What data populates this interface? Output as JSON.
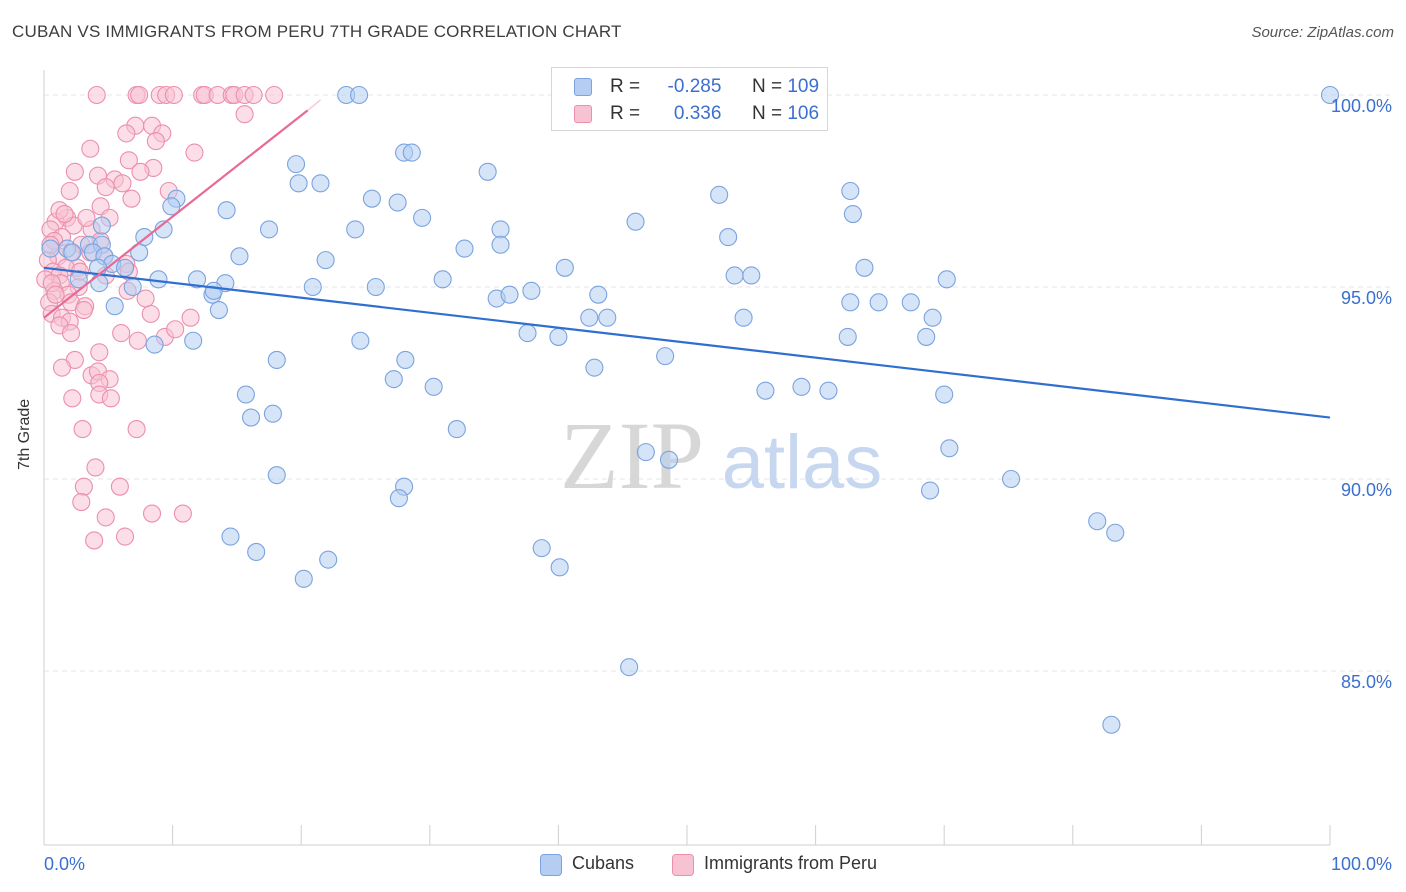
{
  "title": "CUBAN VS IMMIGRANTS FROM PERU 7TH GRADE CORRELATION CHART",
  "source": "Source: ZipAtlas.com",
  "watermark": {
    "zip": "ZIP",
    "atlas": "atlas"
  },
  "legend_top": {
    "rows": [
      {
        "r_label": "R =",
        "r_value": "-0.285",
        "n_label": "N =",
        "n_value": "109"
      },
      {
        "r_label": "R =",
        "r_value": "0.336",
        "n_label": "N =",
        "n_value": "106"
      }
    ]
  },
  "legend_bottom": [
    "Cubans",
    "Immigrants from Peru"
  ],
  "colors": {
    "blue_fill": "#b5cdf2",
    "blue_stroke": "#7aa3df",
    "blue_line": "#2f6fd0",
    "pink_fill": "#f7c3d3",
    "pink_stroke": "#ec8fad",
    "pink_line": "#e86a95",
    "tick_label": "#3b6fd0",
    "grid": "#e6e6e6"
  },
  "chart_data": {
    "type": "scatter",
    "title": "CUBAN VS IMMIGRANTS FROM PERU 7TH GRADE CORRELATION CHART",
    "xlabel": "",
    "ylabel": "7th Grade",
    "xlim": [
      0,
      100
    ],
    "ylim": [
      80.5,
      100.5
    ],
    "x_tick_labels": [
      "0.0%",
      "100.0%"
    ],
    "y_ticks": [
      85,
      90,
      95,
      100
    ],
    "y_tick_labels": [
      "85.0%",
      "90.0%",
      "95.0%",
      "100.0%"
    ],
    "grid": true,
    "series": [
      {
        "name": "Cubans",
        "r": -0.285,
        "n": 109,
        "trend": {
          "x": [
            0,
            100
          ],
          "y": [
            95.5,
            91.6
          ]
        },
        "points": [
          [
            23.5,
            100
          ],
          [
            24.5,
            100
          ],
          [
            100,
            100
          ],
          [
            28,
            98.5
          ],
          [
            28.6,
            98.5
          ],
          [
            19.6,
            98.2
          ],
          [
            34.5,
            98
          ],
          [
            19.8,
            97.7
          ],
          [
            21.5,
            97.7
          ],
          [
            10.3,
            97.3
          ],
          [
            25.5,
            97.3
          ],
          [
            27.5,
            97.2
          ],
          [
            52.5,
            97.4
          ],
          [
            62.7,
            97.5
          ],
          [
            9.9,
            97.1
          ],
          [
            14.2,
            97
          ],
          [
            29.4,
            96.8
          ],
          [
            46,
            96.7
          ],
          [
            62.9,
            96.9
          ],
          [
            17.5,
            96.5
          ],
          [
            24.2,
            96.5
          ],
          [
            35.5,
            96.5
          ],
          [
            53.2,
            96.3
          ],
          [
            9.3,
            96.5
          ],
          [
            7.8,
            96.3
          ],
          [
            4.5,
            96.6
          ],
          [
            1.8,
            96
          ],
          [
            2.2,
            95.9
          ],
          [
            3.5,
            96.1
          ],
          [
            4.5,
            96.1
          ],
          [
            3.8,
            95.9
          ],
          [
            7.4,
            95.9
          ],
          [
            32.7,
            96
          ],
          [
            35.5,
            96.1
          ],
          [
            15.2,
            95.8
          ],
          [
            21.9,
            95.7
          ],
          [
            4.7,
            95.8
          ],
          [
            5.3,
            95.6
          ],
          [
            6.3,
            95.5
          ],
          [
            4.2,
            95.5
          ],
          [
            11.9,
            95.2
          ],
          [
            14.1,
            95.1
          ],
          [
            40.5,
            95.5
          ],
          [
            53.7,
            95.3
          ],
          [
            55,
            95.3
          ],
          [
            63.8,
            95.5
          ],
          [
            70.2,
            95.2
          ],
          [
            31,
            95.2
          ],
          [
            8.9,
            95.2
          ],
          [
            2.7,
            95.2
          ],
          [
            4.3,
            95.1
          ],
          [
            6.9,
            95
          ],
          [
            20.9,
            95
          ],
          [
            25.8,
            95
          ],
          [
            37.9,
            94.9
          ],
          [
            13.1,
            94.8
          ],
          [
            13.2,
            94.9
          ],
          [
            35.2,
            94.7
          ],
          [
            36.2,
            94.8
          ],
          [
            43.1,
            94.8
          ],
          [
            62.7,
            94.6
          ],
          [
            64.9,
            94.6
          ],
          [
            67.4,
            94.6
          ],
          [
            5.5,
            94.5
          ],
          [
            13.6,
            94.4
          ],
          [
            43.8,
            94.2
          ],
          [
            54.4,
            94.2
          ],
          [
            42.4,
            94.2
          ],
          [
            69.1,
            94.2
          ],
          [
            37.6,
            93.8
          ],
          [
            62.5,
            93.7
          ],
          [
            68.6,
            93.7
          ],
          [
            40,
            93.7
          ],
          [
            24.6,
            93.6
          ],
          [
            8.6,
            93.5
          ],
          [
            11.6,
            93.6
          ],
          [
            48.3,
            93.2
          ],
          [
            28.1,
            93.1
          ],
          [
            42.8,
            92.9
          ],
          [
            18.1,
            93.1
          ],
          [
            27.2,
            92.6
          ],
          [
            30.3,
            92.4
          ],
          [
            56.1,
            92.3
          ],
          [
            58.9,
            92.4
          ],
          [
            61,
            92.3
          ],
          [
            15.7,
            92.2
          ],
          [
            32.1,
            91.3
          ],
          [
            17.8,
            91.7
          ],
          [
            16.1,
            91.6
          ],
          [
            70,
            92.2
          ],
          [
            46.8,
            90.7
          ],
          [
            48.6,
            90.5
          ],
          [
            70.4,
            90.8
          ],
          [
            75.2,
            90
          ],
          [
            18.1,
            90.1
          ],
          [
            28,
            89.8
          ],
          [
            68.9,
            89.7
          ],
          [
            27.6,
            89.5
          ],
          [
            81.9,
            88.9
          ],
          [
            83.3,
            88.6
          ],
          [
            14.5,
            88.5
          ],
          [
            16.5,
            88.1
          ],
          [
            38.7,
            88.2
          ],
          [
            40.1,
            87.7
          ],
          [
            20.2,
            87.4
          ],
          [
            22.1,
            87.9
          ],
          [
            45.5,
            85.1
          ],
          [
            83,
            83.6
          ],
          [
            0.5,
            96
          ]
        ]
      },
      {
        "name": "Immigrants from Peru",
        "r": 0.336,
        "n": 106,
        "trend": {
          "x": [
            0,
            20.5
          ],
          "y": [
            94.2,
            99.6
          ]
        },
        "points": [
          [
            7.2,
            100
          ],
          [
            7.4,
            100
          ],
          [
            9,
            100
          ],
          [
            9.5,
            100
          ],
          [
            10.1,
            100
          ],
          [
            12.3,
            100
          ],
          [
            12.5,
            100
          ],
          [
            13.5,
            100
          ],
          [
            14.6,
            100
          ],
          [
            14.8,
            100
          ],
          [
            15.6,
            100
          ],
          [
            16.3,
            100
          ],
          [
            17.9,
            100
          ],
          [
            4.1,
            100
          ],
          [
            15.6,
            99.5
          ],
          [
            7.1,
            99.2
          ],
          [
            8.4,
            99.2
          ],
          [
            9.2,
            99
          ],
          [
            6.4,
            99
          ],
          [
            3.6,
            98.6
          ],
          [
            8.7,
            98.8
          ],
          [
            11.7,
            98.5
          ],
          [
            6.6,
            98.3
          ],
          [
            8.5,
            98.1
          ],
          [
            2.4,
            98
          ],
          [
            4.2,
            97.9
          ],
          [
            5.5,
            97.8
          ],
          [
            6.1,
            97.7
          ],
          [
            7.5,
            98
          ],
          [
            4.8,
            97.6
          ],
          [
            2,
            97.5
          ],
          [
            9.7,
            97.5
          ],
          [
            6.8,
            97.3
          ],
          [
            4.4,
            97.1
          ],
          [
            5.1,
            96.8
          ],
          [
            1.8,
            96.8
          ],
          [
            0.9,
            96.7
          ],
          [
            2.3,
            96.6
          ],
          [
            3.7,
            96.5
          ],
          [
            0.5,
            96.5
          ],
          [
            1.4,
            96.3
          ],
          [
            2.9,
            96.1
          ],
          [
            4.4,
            96.2
          ],
          [
            2.1,
            95.9
          ],
          [
            3.6,
            95.9
          ],
          [
            4.7,
            95.8
          ],
          [
            1.1,
            95.8
          ],
          [
            0.3,
            95.7
          ],
          [
            6.4,
            95.6
          ],
          [
            2.6,
            95.5
          ],
          [
            1.7,
            95.5
          ],
          [
            0.7,
            95.4
          ],
          [
            1.2,
            95.3
          ],
          [
            4.8,
            95.3
          ],
          [
            6.6,
            95.4
          ],
          [
            0.1,
            95.2
          ],
          [
            1.3,
            95.1
          ],
          [
            2.7,
            95
          ],
          [
            0.8,
            94.9
          ],
          [
            1.9,
            94.8
          ],
          [
            6.5,
            94.9
          ],
          [
            0.4,
            94.6
          ],
          [
            2.1,
            94.6
          ],
          [
            3.2,
            94.5
          ],
          [
            0.6,
            94.3
          ],
          [
            1.4,
            94.2
          ],
          [
            2,
            94.1
          ],
          [
            8.3,
            94.3
          ],
          [
            11.4,
            94.2
          ],
          [
            7.9,
            94.7
          ],
          [
            1.2,
            94.0
          ],
          [
            2.1,
            93.8
          ],
          [
            6,
            93.8
          ],
          [
            7.3,
            93.6
          ],
          [
            9.4,
            93.7
          ],
          [
            10.2,
            93.9
          ],
          [
            4.3,
            93.3
          ],
          [
            2.4,
            93.1
          ],
          [
            1.4,
            92.9
          ],
          [
            3.7,
            92.7
          ],
          [
            4.2,
            92.8
          ],
          [
            5.1,
            92.6
          ],
          [
            4.3,
            92.5
          ],
          [
            2.2,
            92.1
          ],
          [
            4.3,
            92.2
          ],
          [
            5.2,
            92.1
          ],
          [
            3,
            91.3
          ],
          [
            7.2,
            91.3
          ],
          [
            4,
            90.3
          ],
          [
            3.1,
            89.8
          ],
          [
            5.9,
            89.8
          ],
          [
            2.9,
            89.4
          ],
          [
            4.8,
            89
          ],
          [
            8.4,
            89.1
          ],
          [
            10.8,
            89.1
          ],
          [
            3.9,
            88.4
          ],
          [
            6.3,
            88.5
          ],
          [
            1.2,
            97
          ],
          [
            0.8,
            96.2
          ],
          [
            0.6,
            95.1
          ],
          [
            2.8,
            95.4
          ],
          [
            3.3,
            96.8
          ],
          [
            1.6,
            96.9
          ],
          [
            0.9,
            94.8
          ],
          [
            3.1,
            94.4
          ],
          [
            0.5,
            96.1
          ]
        ]
      }
    ]
  }
}
